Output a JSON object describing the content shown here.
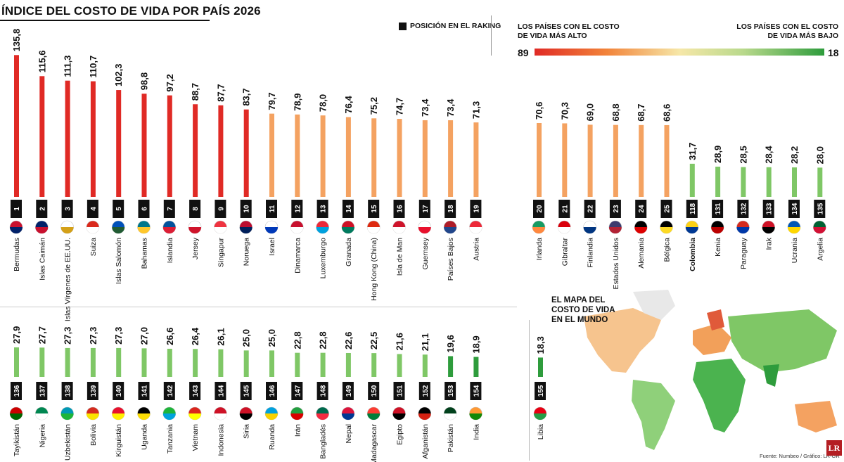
{
  "header": {
    "title": "ÍNDICE DEL COSTO DE VIDA POR PAÍS 2026",
    "legend_rank": "POSICIÓN EN EL RAKING",
    "scale_high_label": "LOS PAÍSES CON EL COSTO DE VIDA MÁS ALTO",
    "scale_low_label": "LOS PAÍSES CON EL COSTO DE VIDA MÁS BAJO",
    "scale_max": "89",
    "scale_min": "18"
  },
  "map": {
    "title": "EL MAPA DEL COSTO DE VIDA EN EL MUNDO"
  },
  "source": "Fuente: Numbeo / Gráfico: LR-GR",
  "logo": "LR",
  "colors": {
    "red": "#e02a25",
    "orange": "#f4a261",
    "light_green": "#7fc766",
    "green": "#2e9c3c",
    "rank_box": "#111111"
  },
  "chart_data": [
    {
      "type": "bar",
      "panel": "top-left",
      "categories": [
        "Bermudas",
        "Islas Caimán",
        "Islas Vírgenes de EE.UU.",
        "Suiza",
        "Islas Salomón",
        "Bahamas",
        "Islandia",
        "Jersey",
        "Singapur",
        "Noruega",
        "Israel",
        "Dinamarca",
        "Luxemburgo",
        "Granada",
        "Hong Kong (China)",
        "Isla de Man",
        "Guernsey",
        "Países Bajos",
        "Austria"
      ],
      "values": [
        135.8,
        115.6,
        111.3,
        110.7,
        102.3,
        98.8,
        97.2,
        88.7,
        87.7,
        83.7,
        79.7,
        78.9,
        78.0,
        76.4,
        75.2,
        74.7,
        73.4,
        73.4,
        71.3
      ],
      "value_labels": [
        "135,8",
        "115,6",
        "111,3",
        "110,7",
        "102,3",
        "98,8",
        "97,2",
        "88,7",
        "87,7",
        "83,7",
        "79,7",
        "78,9",
        "78,0",
        "76,4",
        "75,2",
        "74,7",
        "73,4",
        "73,4",
        "71,3"
      ],
      "ranks": [
        "1",
        "2",
        "3",
        "4",
        "5",
        "6",
        "7",
        "8",
        "9",
        "10",
        "11",
        "12",
        "13",
        "14",
        "15",
        "16",
        "17",
        "18",
        "19"
      ],
      "flags": [
        [
          "#c8102e",
          "#012169"
        ],
        [
          "#012169",
          "#c8102e"
        ],
        [
          "#ffffff",
          "#d4a017"
        ],
        [
          "#da291c",
          "#ffffff"
        ],
        [
          "#0051ba",
          "#215b33"
        ],
        [
          "#00778b",
          "#ffc72c"
        ],
        [
          "#02529c",
          "#dc1e35"
        ],
        [
          "#ffffff",
          "#cf142b"
        ],
        [
          "#ef3340",
          "#ffffff"
        ],
        [
          "#ba0c2f",
          "#00205b"
        ],
        [
          "#ffffff",
          "#0038b8"
        ],
        [
          "#c8102e",
          "#ffffff"
        ],
        [
          "#ed2939",
          "#00a1de"
        ],
        [
          "#ce1126",
          "#007a5e"
        ],
        [
          "#de2910",
          "#ffffff"
        ],
        [
          "#cf142b",
          "#ffffff"
        ],
        [
          "#ffffff",
          "#e8112d"
        ],
        [
          "#ae1c28",
          "#21468b"
        ],
        [
          "#ed2939",
          "#ffffff"
        ]
      ],
      "ylim": [
        0,
        136
      ]
    },
    {
      "type": "bar",
      "panel": "top-right",
      "categories": [
        "Irlanda",
        "Gibraltar",
        "Finlandia",
        "Estados Unidos",
        "Alemania",
        "Bélgica",
        "Colombia",
        "Kenia",
        "Paraguay",
        "Irak",
        "Ucrania",
        "Argelia"
      ],
      "values": [
        70.6,
        70.3,
        69.0,
        68.8,
        68.7,
        68.6,
        31.7,
        28.9,
        28.5,
        28.4,
        28.2,
        28.0
      ],
      "value_labels": [
        "70,6",
        "70,3",
        "69,0",
        "68,8",
        "68,7",
        "68,6",
        "31,7",
        "28,9",
        "28,5",
        "28,4",
        "28,2",
        "28,0"
      ],
      "ranks": [
        "20",
        "21",
        "22",
        "23",
        "24",
        "25",
        "118",
        "131",
        "132",
        "133",
        "134",
        "135"
      ],
      "highlight": "Colombia",
      "flags": [
        [
          "#169b62",
          "#ff883e"
        ],
        [
          "#da000c",
          "#ffffff"
        ],
        [
          "#ffffff",
          "#003580"
        ],
        [
          "#3c3b6e",
          "#b22234"
        ],
        [
          "#000000",
          "#dd0000"
        ],
        [
          "#000000",
          "#fdda24"
        ],
        [
          "#fcd116",
          "#003893"
        ],
        [
          "#000000",
          "#bb0000"
        ],
        [
          "#d52b1e",
          "#0038a8"
        ],
        [
          "#ce1126",
          "#000000"
        ],
        [
          "#0057b7",
          "#ffd700"
        ],
        [
          "#006233",
          "#d21034"
        ]
      ],
      "ylim": [
        0,
        136
      ]
    },
    {
      "type": "bar",
      "panel": "bottom-left",
      "categories": [
        "Tayikistán",
        "Nigeria",
        "Uzbekistán",
        "Bolivia",
        "Kirguistán",
        "Uganda",
        "Tanzania",
        "Vietnam",
        "Indonesia",
        "Siria",
        "Ruanda",
        "Irán",
        "Bangladés",
        "Nepal",
        "Madagascar",
        "Egipto",
        "Afganistán",
        "Pakistán",
        "India"
      ],
      "values": [
        27.9,
        27.7,
        27.3,
        27.3,
        27.3,
        27.0,
        26.6,
        26.4,
        26.1,
        25.0,
        25.0,
        22.8,
        22.8,
        22.6,
        22.5,
        21.6,
        21.1,
        19.6,
        18.9
      ],
      "value_labels": [
        "27,9",
        "27,7",
        "27,3",
        "27,3",
        "27,3",
        "27,0",
        "26,6",
        "26,4",
        "26,1",
        "25,0",
        "25,0",
        "22,8",
        "22,8",
        "22,6",
        "22,5",
        "21,6",
        "21,1",
        "19,6",
        "18,9"
      ],
      "ranks": [
        "136",
        "137",
        "138",
        "139",
        "140",
        "141",
        "142",
        "143",
        "144",
        "145",
        "146",
        "147",
        "148",
        "149",
        "150",
        "151",
        "152",
        "153",
        "154"
      ],
      "flags": [
        [
          "#cc0000",
          "#006600"
        ],
        [
          "#008751",
          "#ffffff"
        ],
        [
          "#0099b5",
          "#1eb53a"
        ],
        [
          "#d52b1e",
          "#f9e300"
        ],
        [
          "#e8112d",
          "#ffef00"
        ],
        [
          "#000000",
          "#fcdc04"
        ],
        [
          "#1eb53a",
          "#00a3dd"
        ],
        [
          "#da251d",
          "#ffff00"
        ],
        [
          "#ce1126",
          "#ffffff"
        ],
        [
          "#ce1126",
          "#000000"
        ],
        [
          "#00a1de",
          "#fad201"
        ],
        [
          "#239f40",
          "#da0000"
        ],
        [
          "#006a4e",
          "#f42a41"
        ],
        [
          "#dc143c",
          "#003893"
        ],
        [
          "#fc3d32",
          "#007e3a"
        ],
        [
          "#ce1126",
          "#000000"
        ],
        [
          "#000000",
          "#d32011"
        ],
        [
          "#01411c",
          "#ffffff"
        ],
        [
          "#ff9933",
          "#138808"
        ]
      ],
      "ylim": [
        0,
        136
      ]
    },
    {
      "type": "bar",
      "panel": "bottom-right",
      "categories": [
        "Libia"
      ],
      "values": [
        18.3
      ],
      "value_labels": [
        "18,3"
      ],
      "ranks": [
        "155"
      ],
      "flags": [
        [
          "#e70013",
          "#239e46"
        ]
      ],
      "ylim": [
        0,
        136
      ]
    }
  ]
}
